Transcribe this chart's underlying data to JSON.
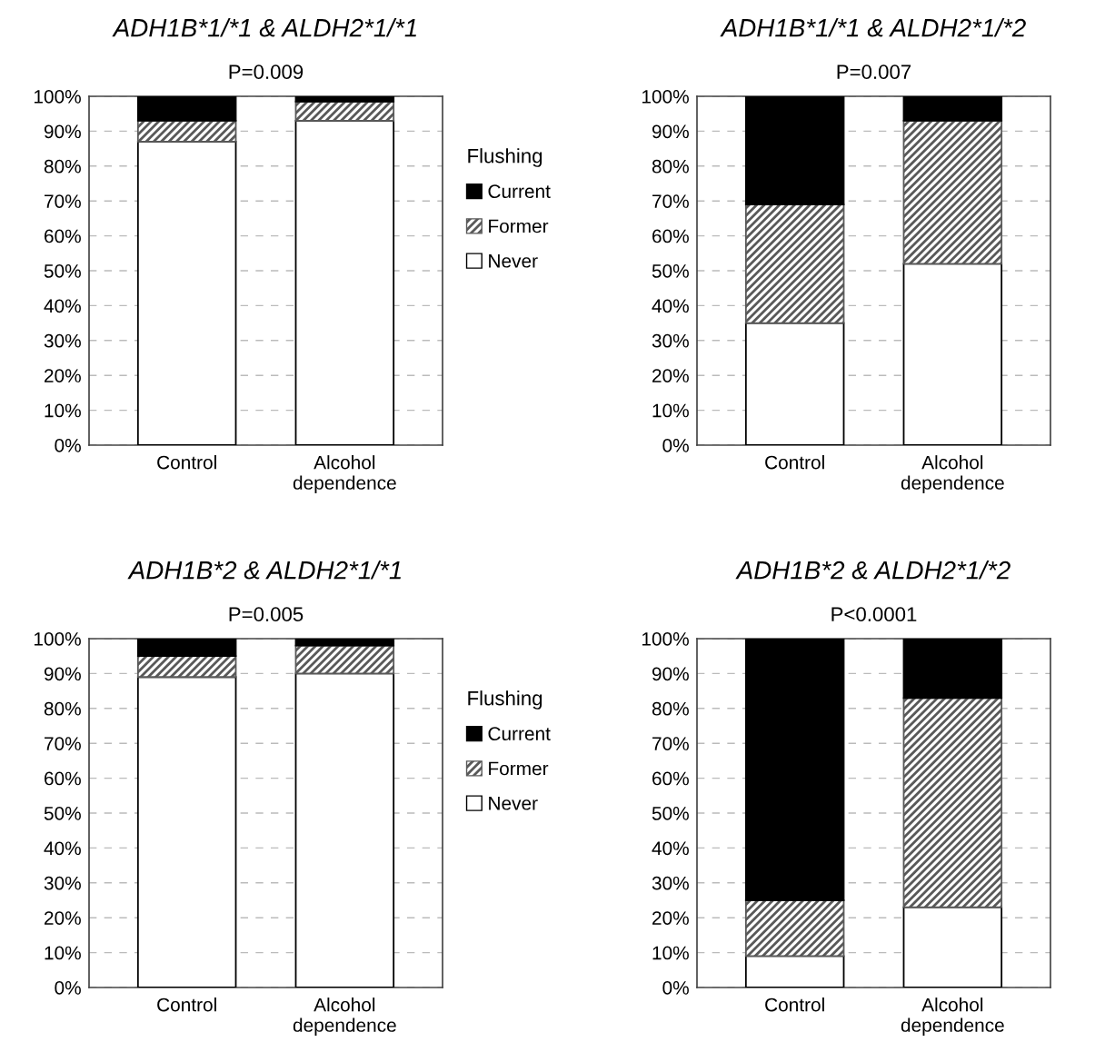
{
  "chart_data": [
    {
      "type": "bar",
      "stacked": true,
      "title": "ADH1B*1/*1 & ALDH2*1/*1",
      "subtitle": "P=0.009",
      "categories": [
        "Control",
        "Alcohol\ndependence"
      ],
      "legend": "right",
      "legend_title": "Flushing",
      "grid": "y",
      "ylim": [
        0,
        100
      ],
      "yticks": [
        {
          "value": 0,
          "label": "0%"
        },
        {
          "value": 10,
          "label": "10%"
        },
        {
          "value": 20,
          "label": "20%"
        },
        {
          "value": 30,
          "label": "30%"
        },
        {
          "value": 40,
          "label": "40%"
        },
        {
          "value": 50,
          "label": "50%"
        },
        {
          "value": 60,
          "label": "60%"
        },
        {
          "value": 70,
          "label": "70%"
        },
        {
          "value": 80,
          "label": "80%"
        },
        {
          "value": 90,
          "label": "90%"
        },
        {
          "value": 100,
          "label": "100%"
        }
      ],
      "series": [
        {
          "name": "Never",
          "color": "#ffffff",
          "values": [
            87,
            93
          ]
        },
        {
          "name": "Former",
          "color": "#595959",
          "values": [
            6,
            5.5
          ]
        },
        {
          "name": "Current",
          "color": "#000000",
          "values": [
            7,
            1.5
          ]
        }
      ]
    },
    {
      "type": "bar",
      "stacked": true,
      "title": "ADH1B*1/*1 & ALDH2*1/*2",
      "subtitle": "P=0.007",
      "categories": [
        "Control",
        "Alcohol\ndependence"
      ],
      "grid": "y",
      "ylim": [
        0,
        100
      ],
      "yticks": [
        {
          "value": 0,
          "label": "0%"
        },
        {
          "value": 10,
          "label": "10%"
        },
        {
          "value": 20,
          "label": "20%"
        },
        {
          "value": 30,
          "label": "30%"
        },
        {
          "value": 40,
          "label": "40%"
        },
        {
          "value": 50,
          "label": "50%"
        },
        {
          "value": 60,
          "label": "60%"
        },
        {
          "value": 70,
          "label": "70%"
        },
        {
          "value": 80,
          "label": "80%"
        },
        {
          "value": 90,
          "label": "90%"
        },
        {
          "value": 100,
          "label": "100%"
        }
      ],
      "series": [
        {
          "color": "#ffffff",
          "values": [
            35,
            52
          ]
        },
        {
          "color": "#595959",
          "values": [
            34,
            41
          ]
        },
        {
          "color": "#000000",
          "values": [
            31,
            7
          ]
        }
      ]
    },
    {
      "type": "bar",
      "stacked": true,
      "title": "ADH1B*2 & ALDH2*1/*1",
      "subtitle": "P=0.005",
      "categories": [
        "Control",
        "Alcohol\ndependence"
      ],
      "legend": "right",
      "legend_title": "Flushing",
      "grid": "y",
      "ylim": [
        0,
        100
      ],
      "yticks": [
        {
          "value": 0,
          "label": "0%"
        },
        {
          "value": 10,
          "label": "10%"
        },
        {
          "value": 20,
          "label": "20%"
        },
        {
          "value": 30,
          "label": "30%"
        },
        {
          "value": 40,
          "label": "40%"
        },
        {
          "value": 50,
          "label": "50%"
        },
        {
          "value": 60,
          "label": "60%"
        },
        {
          "value": 70,
          "label": "70%"
        },
        {
          "value": 80,
          "label": "80%"
        },
        {
          "value": 90,
          "label": "90%"
        },
        {
          "value": 100,
          "label": "100%"
        }
      ],
      "series": [
        {
          "name": "Never",
          "color": "#ffffff",
          "values": [
            89,
            90
          ]
        },
        {
          "name": "Former",
          "color": "#595959",
          "values": [
            6,
            8
          ]
        },
        {
          "name": "Current",
          "color": "#000000",
          "values": [
            5,
            2
          ]
        }
      ]
    },
    {
      "type": "bar",
      "stacked": true,
      "title": "ADH1B*2 & ALDH2*1/*2",
      "subtitle": "P<0.0001",
      "categories": [
        "Control",
        "Alcohol\ndependence"
      ],
      "grid": "y",
      "ylim": [
        0,
        100
      ],
      "yticks": [
        {
          "value": 0,
          "label": "0%"
        },
        {
          "value": 10,
          "label": "10%"
        },
        {
          "value": 20,
          "label": "20%"
        },
        {
          "value": 30,
          "label": "30%"
        },
        {
          "value": 40,
          "label": "40%"
        },
        {
          "value": 50,
          "label": "50%"
        },
        {
          "value": 60,
          "label": "60%"
        },
        {
          "value": 70,
          "label": "70%"
        },
        {
          "value": 80,
          "label": "80%"
        },
        {
          "value": 90,
          "label": "90%"
        },
        {
          "value": 100,
          "label": "100%"
        }
      ],
      "series": [
        {
          "color": "#ffffff",
          "values": [
            9,
            23
          ]
        },
        {
          "color": "#595959",
          "values": [
            16,
            60
          ]
        },
        {
          "color": "#000000",
          "values": [
            75,
            17
          ]
        }
      ]
    }
  ]
}
